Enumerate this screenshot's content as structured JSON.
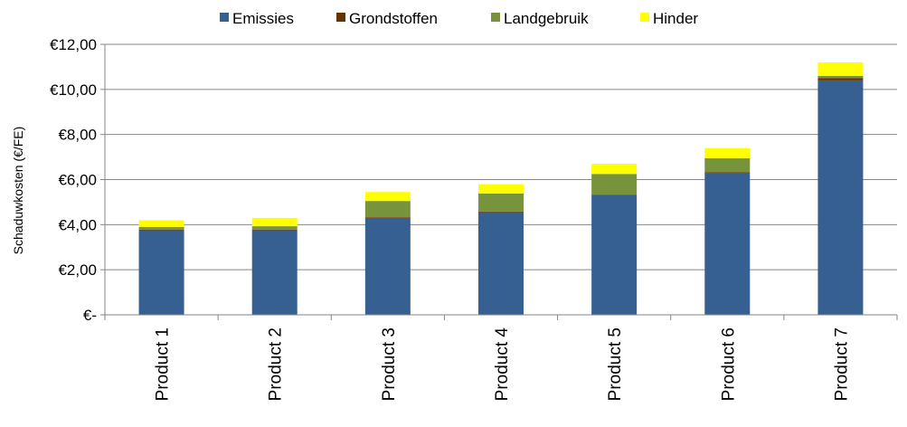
{
  "chart_data": {
    "type": "bar",
    "stacked": true,
    "title": "",
    "xlabel": "",
    "ylabel": "Schaduwkosten (€/FE)",
    "ylim": [
      0,
      12
    ],
    "y_ticks": [
      0,
      2,
      4,
      6,
      8,
      10,
      12
    ],
    "y_tick_labels": [
      "€-",
      "€2,00",
      "€4,00",
      "€6,00",
      "€8,00",
      "€10,00",
      "€12,00"
    ],
    "grid": true,
    "legend_position": "top",
    "categories": [
      "Product  1",
      "Product  2",
      "Product  3",
      "Product  4",
      "Product  5",
      "Product  6",
      "Product  7"
    ],
    "series": [
      {
        "name": "Emissies",
        "color": "#376092",
        "values": [
          3.75,
          3.75,
          4.3,
          4.55,
          5.3,
          6.3,
          10.4
        ]
      },
      {
        "name": "Grondstoffen",
        "color": "#663300",
        "values": [
          0.03,
          0.03,
          0.03,
          0.03,
          0.03,
          0.03,
          0.1
        ]
      },
      {
        "name": "Landgebruik",
        "color": "#77933C",
        "values": [
          0.12,
          0.15,
          0.72,
          0.8,
          0.92,
          0.62,
          0.1
        ]
      },
      {
        "name": "Hinder",
        "color": "#FFFF00",
        "values": [
          0.3,
          0.37,
          0.4,
          0.42,
          0.45,
          0.45,
          0.6
        ]
      }
    ]
  }
}
